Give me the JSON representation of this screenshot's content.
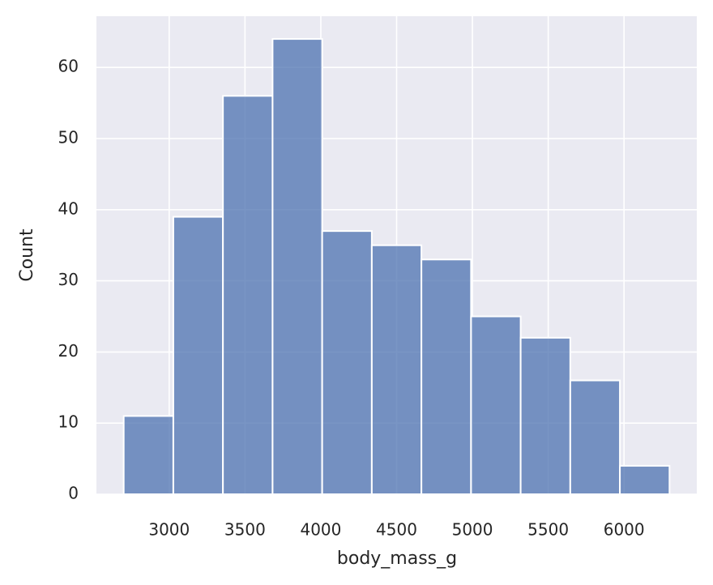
{
  "chart_data": {
    "type": "histogram",
    "xlabel": "body_mass_g",
    "ylabel": "Count",
    "bins": [
      2700,
      3027.27,
      3354.55,
      3681.82,
      4009.09,
      4336.36,
      4663.64,
      4990.91,
      5318.18,
      5645.45,
      5972.73,
      6300
    ],
    "values": [
      11,
      39,
      56,
      64,
      37,
      35,
      33,
      25,
      22,
      16,
      4
    ],
    "color": "#4c72b0",
    "alpha": 0.75,
    "xlim": [
      2520,
      6480
    ],
    "xticks": [
      3000,
      3500,
      4000,
      4500,
      5000,
      5500,
      6000
    ],
    "ylim": [
      0,
      67.2
    ],
    "yticks": [
      0,
      10,
      20,
      30,
      40,
      50,
      60
    ],
    "grid": true
  }
}
